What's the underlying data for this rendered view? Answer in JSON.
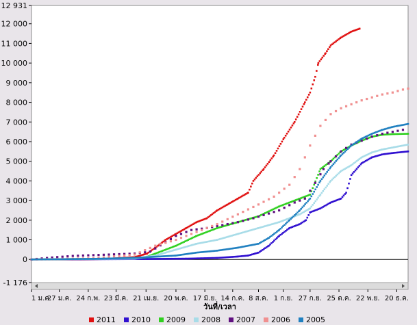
{
  "chart_data": {
    "type": "scatter",
    "xlabel": "วันที่/เวลา",
    "ylim": [
      -1176,
      12931
    ],
    "y_ticks": [
      "12 931",
      "12 000",
      "11 000",
      "10 000",
      "9 000",
      "8 000",
      "7 000",
      "6 000",
      "5 000",
      "4 000",
      "3 000",
      "2 000",
      "1 000",
      "0",
      "-1 176"
    ],
    "y_tick_values": [
      12931,
      12000,
      11000,
      10000,
      9000,
      8000,
      7000,
      6000,
      5000,
      4000,
      3000,
      2000,
      1000,
      0,
      -1176
    ],
    "x_ticks": [
      "1 ม.ค.",
      "27 ม.ค.",
      "24 ก.พ.",
      "23 มี.ค.",
      "21 เม.ย.",
      "20 พ.ค.",
      "17 มิ.ย.",
      "14 ก.ค.",
      "8 ส.ค.",
      "1 ก.ย.",
      "27 ก.ย.",
      "25 ต.ค.",
      "22 พ.ย.",
      "20 ธ.ค."
    ],
    "x_tick_days": [
      0,
      27,
      55,
      82,
      111,
      140,
      168,
      195,
      220,
      244,
      270,
      298,
      326,
      354
    ],
    "xlim_days": [
      0,
      365
    ],
    "grid": false,
    "legend_position": "bottom",
    "series": [
      {
        "name": "2011",
        "color": "#e01010",
        "marker": "square",
        "style": "dense",
        "points": [
          [
            0,
            0
          ],
          [
            40,
            0
          ],
          [
            70,
            20
          ],
          [
            100,
            120
          ],
          [
            112,
            300
          ],
          [
            120,
            600
          ],
          [
            130,
            1000
          ],
          [
            140,
            1300
          ],
          [
            150,
            1600
          ],
          [
            160,
            1900
          ],
          [
            170,
            2100
          ],
          [
            180,
            2500
          ],
          [
            190,
            2800
          ],
          [
            200,
            3100
          ],
          [
            210,
            3400
          ],
          [
            215,
            4000
          ],
          [
            225,
            4600
          ],
          [
            235,
            5300
          ],
          [
            245,
            6200
          ],
          [
            255,
            7000
          ],
          [
            265,
            8000
          ],
          [
            270,
            8500
          ],
          [
            275,
            9300
          ],
          [
            278,
            10000
          ],
          [
            285,
            10500
          ],
          [
            290,
            10900
          ],
          [
            300,
            11300
          ],
          [
            310,
            11600
          ],
          [
            318,
            11750
          ]
        ]
      },
      {
        "name": "2010",
        "color": "#3010d0",
        "marker": "square",
        "style": "dense",
        "points": [
          [
            0,
            0
          ],
          [
            100,
            20
          ],
          [
            150,
            40
          ],
          [
            180,
            80
          ],
          [
            200,
            150
          ],
          [
            210,
            200
          ],
          [
            220,
            350
          ],
          [
            230,
            700
          ],
          [
            240,
            1200
          ],
          [
            250,
            1600
          ],
          [
            260,
            1800
          ],
          [
            266,
            2000
          ],
          [
            270,
            2400
          ],
          [
            280,
            2600
          ],
          [
            290,
            2900
          ],
          [
            300,
            3100
          ],
          [
            305,
            3400
          ],
          [
            310,
            4300
          ],
          [
            320,
            4900
          ],
          [
            330,
            5200
          ],
          [
            340,
            5350
          ],
          [
            350,
            5420
          ],
          [
            365,
            5500
          ]
        ]
      },
      {
        "name": "2009",
        "color": "#30d020",
        "marker": "square",
        "style": "dense",
        "points": [
          [
            0,
            0
          ],
          [
            80,
            40
          ],
          [
            110,
            100
          ],
          [
            120,
            300
          ],
          [
            140,
            700
          ],
          [
            160,
            1200
          ],
          [
            180,
            1600
          ],
          [
            200,
            1900
          ],
          [
            220,
            2200
          ],
          [
            240,
            2700
          ],
          [
            250,
            2900
          ],
          [
            260,
            3100
          ],
          [
            270,
            3300
          ],
          [
            280,
            4600
          ],
          [
            290,
            5000
          ],
          [
            300,
            5500
          ],
          [
            310,
            5800
          ],
          [
            320,
            6050
          ],
          [
            330,
            6250
          ],
          [
            340,
            6350
          ],
          [
            350,
            6380
          ],
          [
            365,
            6400
          ]
        ]
      },
      {
        "name": "2008",
        "color": "#a8dce8",
        "marker": "square",
        "style": "dense",
        "points": [
          [
            0,
            0
          ],
          [
            100,
            40
          ],
          [
            120,
            200
          ],
          [
            140,
            500
          ],
          [
            160,
            800
          ],
          [
            180,
            1000
          ],
          [
            200,
            1300
          ],
          [
            220,
            1600
          ],
          [
            240,
            1900
          ],
          [
            260,
            2300
          ],
          [
            270,
            2600
          ],
          [
            280,
            3300
          ],
          [
            290,
            4000
          ],
          [
            300,
            4500
          ],
          [
            310,
            4800
          ],
          [
            320,
            5200
          ],
          [
            330,
            5450
          ],
          [
            340,
            5600
          ],
          [
            350,
            5700
          ],
          [
            365,
            5850
          ]
        ]
      },
      {
        "name": "2007",
        "color": "#601080",
        "marker": "square",
        "style": "sparse",
        "points": [
          [
            0,
            0
          ],
          [
            20,
            100
          ],
          [
            40,
            180
          ],
          [
            60,
            220
          ],
          [
            80,
            260
          ],
          [
            100,
            300
          ],
          [
            115,
            400
          ],
          [
            140,
            1200
          ],
          [
            155,
            1500
          ],
          [
            170,
            1600
          ],
          [
            180,
            1700
          ],
          [
            200,
            1900
          ],
          [
            215,
            2100
          ],
          [
            240,
            2500
          ],
          [
            255,
            2900
          ],
          [
            265,
            3100
          ],
          [
            275,
            3900
          ],
          [
            283,
            4600
          ],
          [
            290,
            5000
          ],
          [
            300,
            5500
          ],
          [
            310,
            5850
          ],
          [
            320,
            6050
          ],
          [
            330,
            6250
          ],
          [
            340,
            6400
          ],
          [
            350,
            6500
          ],
          [
            360,
            6600
          ]
        ]
      },
      {
        "name": "2006",
        "color": "#f09090",
        "marker": "square",
        "style": "sparse",
        "points": [
          [
            0,
            0
          ],
          [
            60,
            60
          ],
          [
            100,
            250
          ],
          [
            120,
            700
          ],
          [
            140,
            1000
          ],
          [
            160,
            1400
          ],
          [
            180,
            1800
          ],
          [
            200,
            2300
          ],
          [
            220,
            2800
          ],
          [
            235,
            3200
          ],
          [
            250,
            3800
          ],
          [
            260,
            4600
          ],
          [
            270,
            5800
          ],
          [
            280,
            6800
          ],
          [
            290,
            7400
          ],
          [
            300,
            7700
          ],
          [
            310,
            7900
          ],
          [
            320,
            8100
          ],
          [
            330,
            8250
          ],
          [
            340,
            8400
          ],
          [
            350,
            8500
          ],
          [
            360,
            8650
          ],
          [
            365,
            8700
          ]
        ]
      },
      {
        "name": "2005",
        "color": "#2080c0",
        "marker": "square",
        "style": "dense",
        "points": [
          [
            0,
            0
          ],
          [
            60,
            30
          ],
          [
            100,
            80
          ],
          [
            140,
            200
          ],
          [
            160,
            350
          ],
          [
            180,
            450
          ],
          [
            200,
            600
          ],
          [
            220,
            800
          ],
          [
            230,
            1100
          ],
          [
            240,
            1500
          ],
          [
            250,
            2000
          ],
          [
            260,
            2500
          ],
          [
            270,
            3100
          ],
          [
            280,
            4000
          ],
          [
            290,
            4700
          ],
          [
            300,
            5300
          ],
          [
            310,
            5800
          ],
          [
            320,
            6150
          ],
          [
            330,
            6400
          ],
          [
            340,
            6600
          ],
          [
            350,
            6750
          ],
          [
            365,
            6900
          ]
        ]
      }
    ]
  }
}
